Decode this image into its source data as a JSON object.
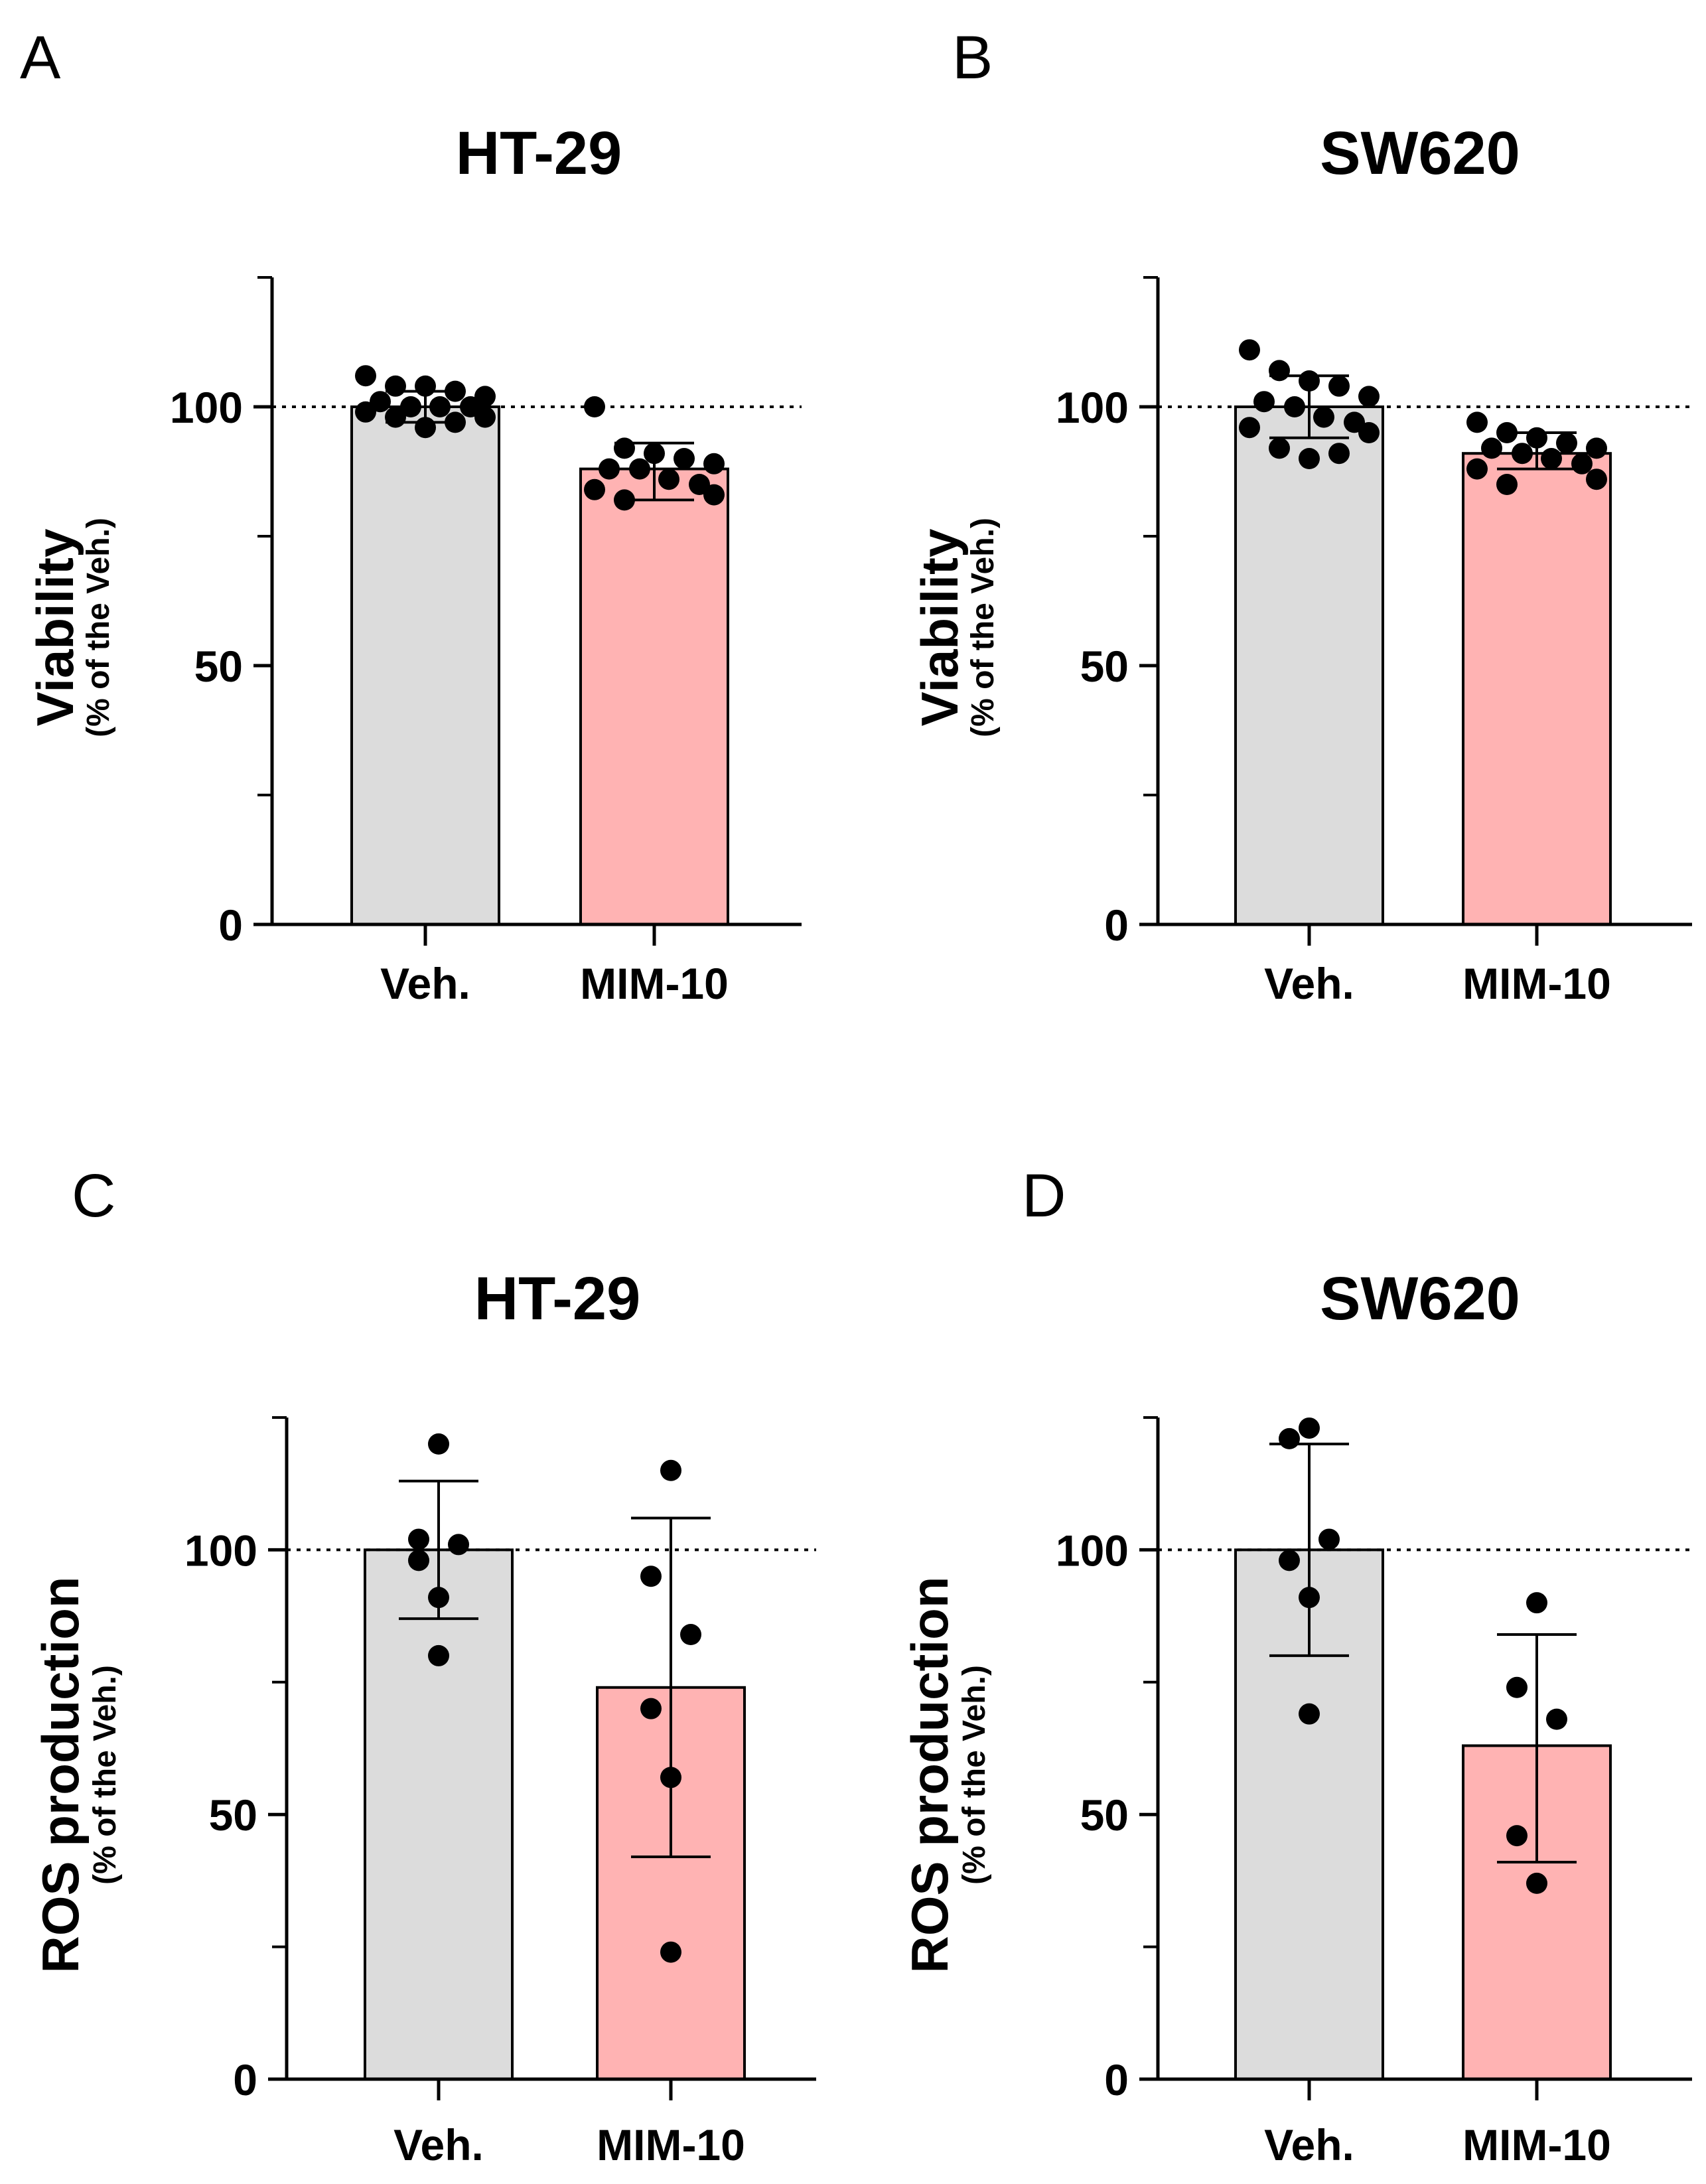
{
  "figure": {
    "colors": {
      "vehicle": "#DCDCDC",
      "treatment": "#FFB3B3",
      "axis": "#000000",
      "point": "#000000"
    },
    "reference_line_value": 100
  },
  "chart_data": [
    {
      "panel": "A",
      "type": "bar",
      "title": "HT-29",
      "ylabel": "Viability",
      "ylabel_sub": "(% of the Veh.)",
      "ylim": [
        0,
        125
      ],
      "yticks": [
        0,
        50,
        100
      ],
      "yticks_minor": [
        25,
        75,
        125
      ],
      "categories": [
        "Veh.",
        "MIM-10"
      ],
      "values": [
        100,
        88
      ],
      "error": [
        [
          97,
          103
        ],
        [
          82,
          93
        ]
      ],
      "points": [
        [
          106,
          104,
          104,
          103,
          102,
          101,
          100,
          100,
          100,
          99,
          98,
          98,
          97,
          96
        ],
        [
          100,
          92,
          91,
          90,
          89,
          88,
          88,
          86,
          85,
          84,
          83,
          82
        ]
      ]
    },
    {
      "panel": "B",
      "type": "bar",
      "title": "SW620",
      "ylabel": "Viability",
      "ylabel_sub": "(% of the Veh.)",
      "ylim": [
        0,
        125
      ],
      "yticks": [
        0,
        50,
        100
      ],
      "yticks_minor": [
        25,
        75,
        125
      ],
      "categories": [
        "Veh.",
        "MIM-10"
      ],
      "values": [
        100,
        91
      ],
      "error": [
        [
          94,
          106
        ],
        [
          88,
          95
        ]
      ],
      "points": [
        [
          111,
          107,
          105,
          104,
          102,
          101,
          100,
          98,
          97,
          96,
          95,
          92,
          91,
          90
        ],
        [
          97,
          95,
          94,
          93,
          92,
          92,
          91,
          90,
          89,
          88,
          86,
          85
        ]
      ]
    },
    {
      "panel": "C",
      "type": "bar",
      "title": "HT-29",
      "ylabel": "ROS production",
      "ylabel_sub": "(% of the Veh.)",
      "ylim": [
        0,
        125
      ],
      "yticks": [
        0,
        50,
        100
      ],
      "yticks_minor": [
        25,
        75,
        125
      ],
      "categories": [
        "Veh.",
        "MIM-10"
      ],
      "values": [
        100,
        74
      ],
      "error": [
        [
          87,
          113
        ],
        [
          42,
          106
        ]
      ],
      "points": [
        [
          120,
          102,
          101,
          98,
          91,
          80
        ],
        [
          115,
          95,
          84,
          70,
          57,
          24
        ]
      ]
    },
    {
      "panel": "D",
      "type": "bar",
      "title": "SW620",
      "ylabel": "ROS production",
      "ylabel_sub": "(% of the Veh.)",
      "ylim": [
        0,
        125
      ],
      "yticks": [
        0,
        50,
        100
      ],
      "yticks_minor": [
        25,
        75,
        125
      ],
      "categories": [
        "Veh.",
        "MIM-10"
      ],
      "values": [
        100,
        63
      ],
      "error": [
        [
          80,
          120
        ],
        [
          41,
          84
        ]
      ],
      "points": [
        [
          123,
          121,
          102,
          98,
          91,
          69
        ],
        [
          90,
          74,
          68,
          46,
          37
        ]
      ]
    }
  ]
}
